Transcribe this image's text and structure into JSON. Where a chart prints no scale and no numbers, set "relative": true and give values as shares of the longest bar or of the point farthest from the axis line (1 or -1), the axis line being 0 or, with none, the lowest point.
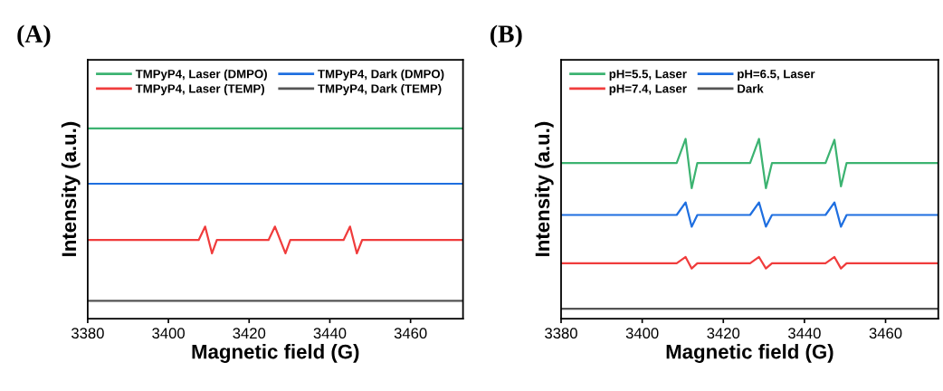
{
  "chart_data": [
    {
      "type": "line",
      "title": "(A)",
      "xlabel": "Magnetic field (G)",
      "ylabel": "Intensity (a.u.)",
      "relative": true,
      "xlim": [
        3380,
        3473
      ],
      "xticks": [
        3380,
        3400,
        3420,
        3440,
        3460
      ],
      "legend": "top",
      "tick_labels": "x",
      "grid": false,
      "series": [
        {
          "name": "TMPyP4, Laser (DMPO)",
          "color": "#3cb371",
          "x": [
            3380,
            3473
          ],
          "values": [
            1.0,
            1.0
          ]
        },
        {
          "name": "TMPyP4, Dark (DMPO)",
          "color": "#1f6fe0",
          "x": [
            3380,
            3473
          ],
          "values": [
            0.709,
            0.709
          ]
        },
        {
          "name": "TMPyP4, Laser (TEMP)",
          "color": "#f03c3c",
          "x": [
            3380,
            3407.5,
            3409.1,
            3410.8,
            3412,
            3424.8,
            3426.4,
            3429,
            3430.2,
            3443.4,
            3445,
            3446.7,
            3448,
            3473
          ],
          "values": [
            0.413,
            0.413,
            0.484,
            0.343,
            0.413,
            0.413,
            0.484,
            0.343,
            0.413,
            0.413,
            0.484,
            0.343,
            0.413,
            0.413
          ]
        },
        {
          "name": "TMPyP4, Dark (TEMP)",
          "color": "#555555",
          "x": [
            3380,
            3473
          ],
          "values": [
            0.094,
            0.094
          ]
        }
      ]
    },
    {
      "type": "line",
      "title": "(B)",
      "xlabel": "Magnetic field (G)",
      "ylabel": "Intensity (a.u.)",
      "relative": true,
      "xlim": [
        3380,
        3473
      ],
      "xticks": [
        3380,
        3400,
        3420,
        3440,
        3460
      ],
      "legend": "top",
      "tick_labels": "x",
      "grid": false,
      "series": [
        {
          "name": "pH=5.5, Laser",
          "color": "#3cb371",
          "x": [
            3380,
            3408.5,
            3410.7,
            3412.2,
            3413.6,
            3426.6,
            3428.8,
            3430.5,
            3432,
            3445.2,
            3447.4,
            3449,
            3450.4,
            3473
          ],
          "values": [
            0.866,
            0.866,
            1.0,
            0.726,
            0.866,
            0.866,
            1.0,
            0.726,
            0.866,
            0.866,
            0.995,
            0.736,
            0.866,
            0.866
          ]
        },
        {
          "name": "pH=6.5, Laser",
          "color": "#1f6fe0",
          "x": [
            3380,
            3408.5,
            3410.7,
            3412.2,
            3413.6,
            3426.6,
            3428.8,
            3430.5,
            3432,
            3445.2,
            3447.4,
            3449,
            3450.4,
            3473
          ],
          "values": [
            0.577,
            0.577,
            0.647,
            0.512,
            0.577,
            0.577,
            0.647,
            0.512,
            0.577,
            0.577,
            0.647,
            0.512,
            0.577,
            0.577
          ]
        },
        {
          "name": "pH=7.4, Laser",
          "color": "#f03c3c",
          "x": [
            3380,
            3408.5,
            3410.7,
            3412.2,
            3413.6,
            3426.6,
            3428.8,
            3430.5,
            3432,
            3445.2,
            3447.4,
            3449,
            3450.4,
            3473
          ],
          "values": [
            0.308,
            0.308,
            0.343,
            0.279,
            0.308,
            0.308,
            0.343,
            0.279,
            0.308,
            0.308,
            0.343,
            0.279,
            0.308,
            0.308
          ]
        },
        {
          "name": "Dark",
          "color": "#555555",
          "x": [
            3380,
            3473
          ],
          "values": [
            0.055,
            0.055
          ]
        }
      ]
    }
  ]
}
